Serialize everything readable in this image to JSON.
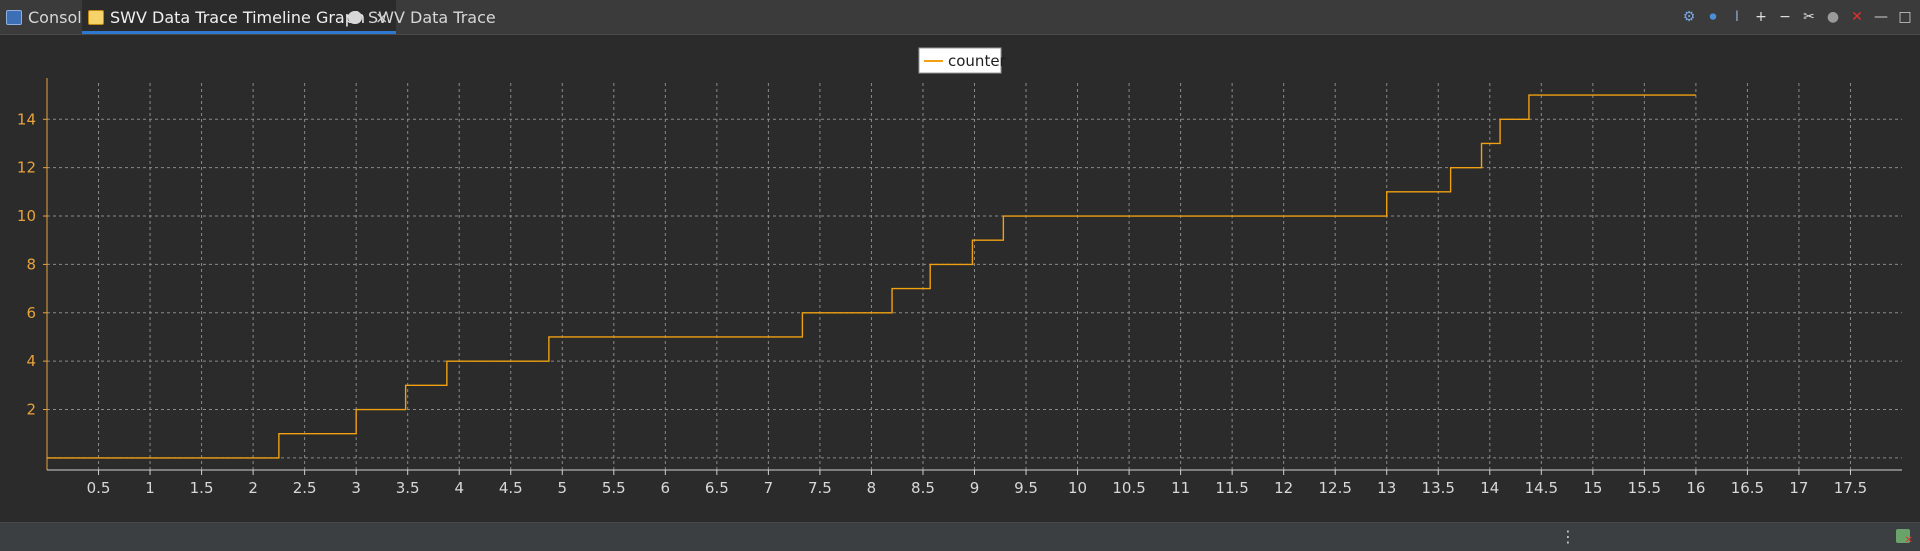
{
  "tabs": [
    {
      "label": "Console",
      "icon": "console-icon"
    },
    {
      "label": "SWV Data Trace Timeline Graph",
      "icon": "timeline-graph-icon",
      "active": true,
      "close": "×"
    },
    {
      "label": "SWV Data Trace",
      "icon": "data-trace-icon"
    }
  ],
  "toolbar": {
    "icons": [
      "configure-trace-icon",
      "start-trace-icon",
      "cursor-icon",
      "zoom-in-icon",
      "zoom-out-icon",
      "settings-icon",
      "record-icon",
      "remove-all-icon",
      "minimize-icon",
      "maximize-icon"
    ],
    "glyphs": [
      "⚙",
      "⏺",
      "I",
      "+",
      "−",
      "✂",
      "●",
      "✕",
      "—",
      "□"
    ]
  },
  "statusbar": {
    "menu_glyph": "⋮",
    "icon": "remove-all-icon"
  },
  "colors": {
    "series": "#f0a010",
    "background": "#2b2b2b",
    "grid": "#8a8a8a",
    "axis": "#d0d0d0",
    "ytick": "#e8a23a"
  },
  "chart_data": {
    "type": "line",
    "step": true,
    "legend": "top-center",
    "grid": true,
    "xlim": [
      0,
      18
    ],
    "ylim": [
      -0.5,
      15.5
    ],
    "xticks": [
      0.5,
      1,
      1.5,
      2,
      2.5,
      3,
      3.5,
      4,
      4.5,
      5,
      5.5,
      6,
      6.5,
      7,
      7.5,
      8,
      8.5,
      9,
      9.5,
      10,
      10.5,
      11,
      11.5,
      12,
      12.5,
      13,
      13.5,
      14,
      14.5,
      15,
      15.5,
      16,
      16.5,
      17,
      17.5
    ],
    "yticks": [
      2,
      4,
      6,
      8,
      10,
      12,
      14
    ],
    "series": [
      {
        "name": "counter",
        "x": [
          0,
          2.25,
          3.0,
          3.48,
          3.88,
          4.87,
          7.33,
          8.2,
          8.57,
          8.98,
          9.28,
          13.0,
          13.62,
          13.92,
          14.1,
          14.38,
          16.0
        ],
        "y": [
          0,
          1,
          2,
          3,
          4,
          5,
          6,
          7,
          8,
          9,
          10,
          11,
          12,
          13,
          14,
          15,
          15
        ]
      }
    ]
  }
}
